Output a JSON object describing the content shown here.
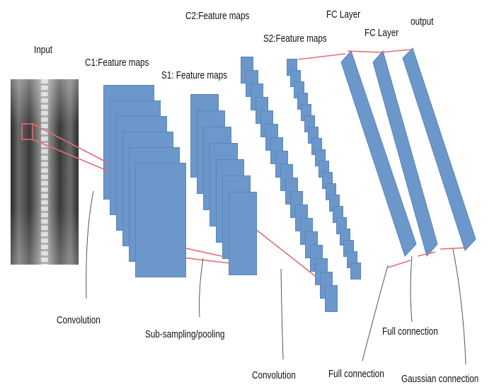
{
  "labels": {
    "input": "Input",
    "c1": "C1:Feature maps",
    "s1": "S1: Feature maps",
    "c2": "C2:Feature maps",
    "s2": "S2:Feature maps",
    "fc1": "FC Layer",
    "fc2": "FC Layer",
    "output": "output"
  },
  "bottom_labels": {
    "convolution_1": "Convolution",
    "subsampling": "Sub-sampling/pooling",
    "convolution_2": "Convolution",
    "full_connection_1": "Full connection",
    "full_connection_2": "Full connection",
    "gaussian_connection": "Gaussian connection"
  },
  "colors": {
    "map_fill": "#6b97cb",
    "map_border": "#5a86ba",
    "connection_line": "#e06d73",
    "leader_line": "#555555"
  },
  "input_image": {
    "kind": "chest x-ray",
    "icon": "xray-image"
  }
}
